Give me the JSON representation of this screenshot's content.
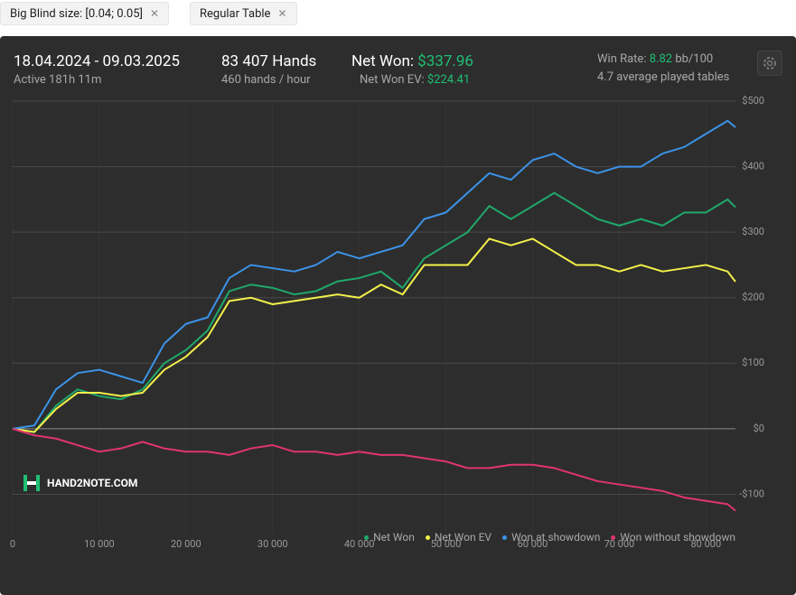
{
  "filters": [
    "Big Blind size: [0.04; 0.05]",
    "Regular Table"
  ],
  "stats": {
    "date_range": "18.04.2024 - 09.03.2025",
    "active": "Active 181h 11m",
    "hands": "83 407 Hands",
    "hands_per_hour": "460 hands / hour",
    "net_won_label": "Net Won:",
    "net_won": "$337.96",
    "net_won_ev_label": "Net Won  EV:",
    "net_won_ev": "$224.41",
    "win_rate_label": "Win Rate:",
    "win_rate": "8.82",
    "win_rate_unit": "bb/100",
    "tables": "4.7 average played tables"
  },
  "logo": "HAND2NOTE.COM",
  "chart_data": {
    "type": "line",
    "x": [
      0,
      2500,
      5000,
      7500,
      10000,
      12500,
      15000,
      17500,
      20000,
      22500,
      25000,
      27500,
      30000,
      32500,
      35000,
      37500,
      40000,
      42500,
      45000,
      47500,
      50000,
      52500,
      55000,
      57500,
      60000,
      62500,
      65000,
      67500,
      70000,
      72500,
      75000,
      77500,
      80000,
      82500,
      83407
    ],
    "xlim": [
      0,
      83407
    ],
    "xticks": [
      0,
      {
        "value": 10000,
        "label": "10 000"
      },
      {
        "value": 20000,
        "label": "20 000"
      },
      {
        "value": 30000,
        "label": "30 000"
      },
      {
        "value": 40000,
        "label": "40 000"
      },
      {
        "value": 50000,
        "label": "50 000"
      },
      {
        "value": 60000,
        "label": "60 000"
      },
      {
        "value": 70000,
        "label": "70 000"
      },
      {
        "value": 80000,
        "label": "80 000"
      }
    ],
    "ylim": [
      -160,
      500
    ],
    "yticks": [
      {
        "value": -100,
        "label": "-$100"
      },
      {
        "value": 0,
        "label": "$0"
      },
      {
        "value": 100,
        "label": "$100"
      },
      {
        "value": 200,
        "label": "$200"
      },
      {
        "value": 300,
        "label": "$300"
      },
      {
        "value": 400,
        "label": "$400"
      },
      {
        "value": 500,
        "label": "$500"
      }
    ],
    "grid": true,
    "series": [
      {
        "name": "Net Won",
        "color": "#1fa86a",
        "values": [
          0,
          -5,
          35,
          60,
          50,
          45,
          60,
          100,
          120,
          150,
          210,
          220,
          215,
          205,
          210,
          225,
          230,
          240,
          215,
          260,
          280,
          300,
          340,
          320,
          340,
          360,
          340,
          320,
          310,
          320,
          310,
          330,
          330,
          350,
          337.96
        ]
      },
      {
        "name": "Net Won  EV",
        "color": "#f4f04a",
        "values": [
          0,
          -5,
          30,
          55,
          55,
          50,
          55,
          90,
          110,
          140,
          195,
          200,
          190,
          195,
          200,
          205,
          200,
          220,
          205,
          250,
          250,
          250,
          290,
          280,
          290,
          270,
          250,
          250,
          240,
          250,
          240,
          245,
          250,
          240,
          224.41
        ]
      },
      {
        "name": "Won at showdown",
        "color": "#3b93e8",
        "values": [
          0,
          5,
          60,
          85,
          90,
          80,
          70,
          130,
          160,
          170,
          230,
          250,
          245,
          240,
          250,
          270,
          260,
          270,
          280,
          320,
          330,
          360,
          390,
          380,
          410,
          420,
          400,
          390,
          400,
          400,
          420,
          430,
          450,
          470,
          460
        ]
      },
      {
        "name": "Won without showdown",
        "color": "#e0356b",
        "values": [
          0,
          -10,
          -15,
          -25,
          -35,
          -30,
          -20,
          -30,
          -35,
          -35,
          -40,
          -30,
          -25,
          -35,
          -35,
          -40,
          -35,
          -40,
          -40,
          -45,
          -50,
          -60,
          -60,
          -55,
          -55,
          -60,
          -70,
          -80,
          -85,
          -90,
          -95,
          -105,
          -110,
          -115,
          -125
        ]
      }
    ]
  }
}
